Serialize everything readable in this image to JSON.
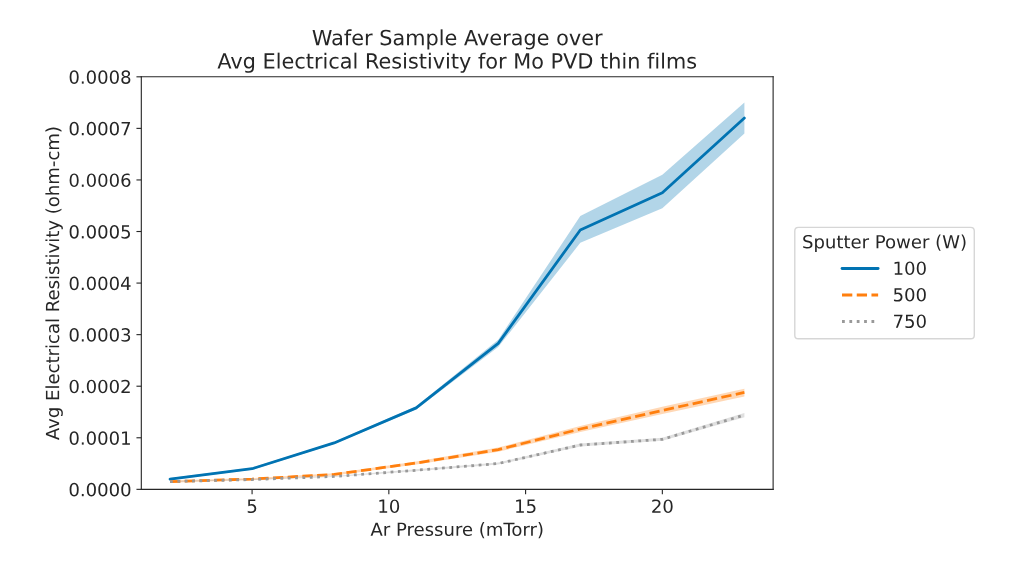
{
  "chart_data": {
    "type": "line",
    "title": "Wafer Sample Average over\nAvg Electrical Resistivity for Mo PVD thin films",
    "xlabel": "Ar Pressure (mTorr)",
    "ylabel": "Avg Electrical Resistivity (ohm-cm)",
    "legend_title": "Sputter Power (W)",
    "legend": "right",
    "grid": false,
    "x": [
      2,
      5,
      8,
      11,
      14,
      17,
      20,
      23
    ],
    "xlim": [
      0.95,
      24.05
    ],
    "xticks": [
      5,
      10,
      15,
      20
    ],
    "ylim": [
      0,
      0.0008
    ],
    "yticks": [
      {
        "value": 0,
        "label": "0.0000"
      },
      {
        "value": 0.0001,
        "label": "0.0001"
      },
      {
        "value": 0.0002,
        "label": "0.0002"
      },
      {
        "value": 0.0003,
        "label": "0.0003"
      },
      {
        "value": 0.0004,
        "label": "0.0004"
      },
      {
        "value": 0.0005,
        "label": "0.0005"
      },
      {
        "value": 0.0006,
        "label": "0.0006"
      },
      {
        "value": 0.0007,
        "label": "0.0007"
      },
      {
        "value": 0.0008,
        "label": "0.0008"
      }
    ],
    "series": [
      {
        "name": "100",
        "color": "#0173b2",
        "line_style": "solid",
        "values": [
          2e-05,
          4e-05,
          9e-05,
          0.000158,
          0.000283,
          0.000503,
          0.000575,
          0.00072
        ],
        "lower": [
          1.8e-05,
          3.8e-05,
          8.8e-05,
          0.000155,
          0.000276,
          0.000478,
          0.000545,
          0.00069
        ],
        "upper": [
          2.2e-05,
          4.2e-05,
          9.2e-05,
          0.000161,
          0.00029,
          0.00053,
          0.00061,
          0.00075
        ]
      },
      {
        "name": "500",
        "color": "#ff7f0e",
        "line_style": "dashed",
        "values": [
          1.5e-05,
          2e-05,
          2.9e-05,
          5.1e-05,
          7.7e-05,
          0.000117,
          0.000153,
          0.000188
        ],
        "lower": [
          1.3e-05,
          1.8e-05,
          2.7e-05,
          4.8e-05,
          7.3e-05,
          0.000111,
          0.000146,
          0.00018
        ],
        "upper": [
          1.7e-05,
          2.2e-05,
          3.1e-05,
          5.4e-05,
          8.1e-05,
          0.000123,
          0.00016,
          0.000195
        ]
      },
      {
        "name": "750",
        "color": "#999999",
        "line_style": "dotted",
        "values": [
          1.5e-05,
          1.9e-05,
          2.5e-05,
          3.7e-05,
          5e-05,
          8.6e-05,
          9.7e-05,
          0.000144
        ],
        "lower": [
          1.4e-05,
          1.8e-05,
          2.4e-05,
          3.5e-05,
          4.8e-05,
          8.3e-05,
          9.4e-05,
          0.00014
        ],
        "upper": [
          1.6e-05,
          2e-05,
          2.6e-05,
          3.9e-05,
          5.2e-05,
          8.9e-05,
          0.0001,
          0.000148
        ]
      }
    ]
  }
}
